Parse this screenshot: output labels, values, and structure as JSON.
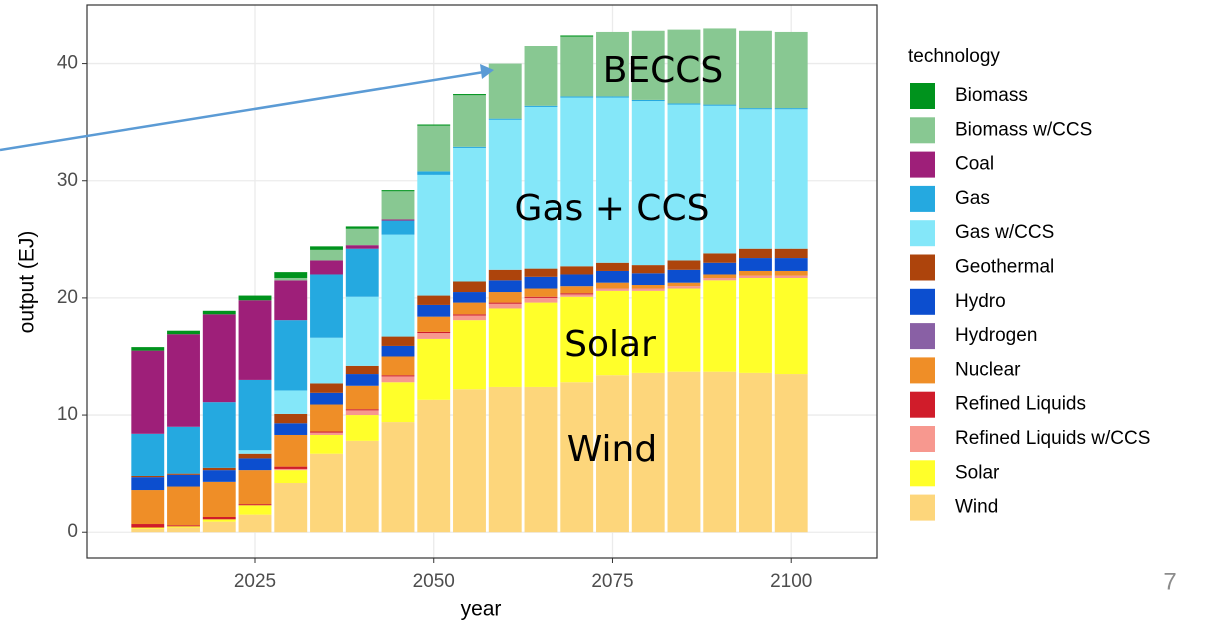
{
  "chart_data": {
    "type": "stacked_bar",
    "xlabel": "year",
    "ylabel": "output (EJ)",
    "legend_title": "technology",
    "legend": "right",
    "x": [
      2010,
      2015,
      2020,
      2025,
      2030,
      2035,
      2040,
      2045,
      2050,
      2055,
      2060,
      2065,
      2070,
      2075,
      2080,
      2085,
      2090,
      2095,
      2100
    ],
    "xlim": [
      2001.5,
      2112
    ],
    "xticks": [
      2025,
      2050,
      2075,
      2100
    ],
    "ylim": [
      -2.2,
      45
    ],
    "yticks": [
      0,
      10,
      20,
      30,
      40
    ],
    "grid": true,
    "series": [
      {
        "name": "Biomass",
        "color": "#00931d",
        "values": [
          0.3,
          0.3,
          0.3,
          0.4,
          0.5,
          0.3,
          0.2,
          0.1,
          0.1,
          0.1,
          0,
          0,
          0.1,
          0,
          0,
          0,
          0,
          0,
          0
        ]
      },
      {
        "name": "Biomass w/CCS",
        "color": "#88c892",
        "values": [
          0,
          0,
          0,
          0,
          0.2,
          0.9,
          1.4,
          2.4,
          3.9,
          4.4,
          4.7,
          5.1,
          5.1,
          5.5,
          5.9,
          6.3,
          6.5,
          6.6,
          6.5
        ]
      },
      {
        "name": "Coal",
        "color": "#9e1f79",
        "values": [
          7.1,
          7.9,
          7.5,
          6.8,
          3.4,
          1.2,
          0.3,
          0.1,
          0,
          0,
          0,
          0,
          0,
          0,
          0,
          0,
          0,
          0,
          0
        ]
      },
      {
        "name": "Gas",
        "color": "#25a9e0",
        "values": [
          3.6,
          4.0,
          5.6,
          6.0,
          6.0,
          5.4,
          4.1,
          1.2,
          0.3,
          0.1,
          0.1,
          0.1,
          0.1,
          0.1,
          0.1,
          0.1,
          0.1,
          0.1,
          0.1
        ]
      },
      {
        "name": "Gas w/CCS",
        "color": "#84e7f9",
        "values": [
          0,
          0,
          0,
          0.3,
          2.0,
          3.9,
          5.9,
          8.7,
          10.3,
          11.4,
          12.8,
          13.8,
          14.4,
          14.1,
          14.0,
          13.3,
          12.6,
          11.9,
          11.9
        ]
      },
      {
        "name": "Geothermal",
        "color": "#ad440c",
        "values": [
          0.1,
          0.1,
          0.2,
          0.4,
          0.8,
          0.8,
          0.7,
          0.8,
          0.8,
          0.9,
          0.9,
          0.7,
          0.7,
          0.7,
          0.7,
          0.8,
          0.8,
          0.8,
          0.8
        ]
      },
      {
        "name": "Hydro",
        "color": "#0c4ecf",
        "values": [
          1.1,
          1.0,
          1.0,
          1.0,
          1.0,
          1.0,
          1.0,
          0.9,
          1.0,
          0.9,
          1.0,
          1.0,
          1.0,
          1.0,
          1.0,
          1.1,
          1.0,
          1.1,
          1.1
        ]
      },
      {
        "name": "Hydrogen",
        "color": "#8960a5",
        "values": [
          0,
          0,
          0,
          0,
          0,
          0,
          0,
          0,
          0,
          0,
          0,
          0,
          0,
          0,
          0,
          0,
          0,
          0,
          0
        ]
      },
      {
        "name": "Nuclear",
        "color": "#ef8e27",
        "values": [
          2.9,
          3.3,
          3.0,
          2.9,
          2.7,
          2.3,
          2.0,
          1.6,
          1.3,
          1.0,
          0.9,
          0.7,
          0.6,
          0.5,
          0.3,
          0.3,
          0.3,
          0.4,
          0.4
        ]
      },
      {
        "name": "Refined Liquids",
        "color": "#d01c2a",
        "values": [
          0.3,
          0.1,
          0.2,
          0.1,
          0.2,
          0.1,
          0.1,
          0.1,
          0.1,
          0.1,
          0.1,
          0.1,
          0.1,
          0,
          0,
          0,
          0,
          0,
          0
        ]
      },
      {
        "name": "Refined Liquids w/CCS",
        "color": "#f7988f",
        "values": [
          0,
          0,
          0,
          0,
          0.1,
          0.2,
          0.4,
          0.5,
          0.5,
          0.4,
          0.4,
          0.4,
          0.2,
          0.2,
          0.2,
          0.2,
          0.2,
          0.2,
          0.2
        ]
      },
      {
        "name": "Solar",
        "color": "#ffff2a",
        "values": [
          0.1,
          0.1,
          0.2,
          0.8,
          1.1,
          1.6,
          2.2,
          3.4,
          5.2,
          5.9,
          6.7,
          7.2,
          7.3,
          7.2,
          7.0,
          7.1,
          7.8,
          8.1,
          8.2
        ]
      },
      {
        "name": "Wind",
        "color": "#fdd67b",
        "values": [
          0.3,
          0.4,
          0.9,
          1.5,
          4.2,
          6.7,
          7.8,
          9.4,
          11.3,
          12.2,
          12.4,
          12.4,
          12.8,
          13.4,
          13.6,
          13.7,
          13.7,
          13.6,
          13.5
        ]
      }
    ],
    "annotations": [
      "BECCS",
      "Gas + CCS",
      "Solar",
      "Wind"
    ]
  },
  "page_number": "7"
}
